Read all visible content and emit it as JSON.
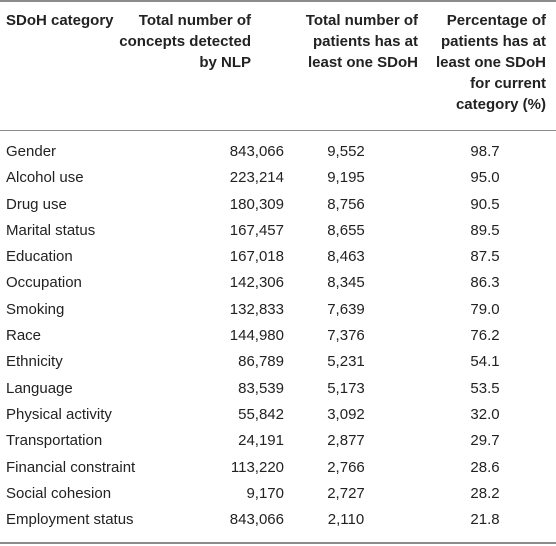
{
  "table": {
    "headers": [
      "SDoH category",
      "Total number of\nconcepts detected\nby NLP",
      "Total number of\npatients has at\nleast one SDoH",
      "Percentage of\npatients has at\nleast one SDoH\nfor current\ncategory (%)"
    ],
    "rows": [
      [
        "Gender",
        "843,066",
        "9,552",
        "98.7"
      ],
      [
        "Alcohol use",
        "223,214",
        "9,195",
        "95.0"
      ],
      [
        "Drug use",
        "180,309",
        "8,756",
        "90.5"
      ],
      [
        "Marital status",
        "167,457",
        "8,655",
        "89.5"
      ],
      [
        "Education",
        "167,018",
        "8,463",
        "87.5"
      ],
      [
        "Occupation",
        "142,306",
        "8,345",
        "86.3"
      ],
      [
        "Smoking",
        "132,833",
        "7,639",
        "79.0"
      ],
      [
        "Race",
        "144,980",
        "7,376",
        "76.2"
      ],
      [
        "Ethnicity",
        "86,789",
        "5,231",
        "54.1"
      ],
      [
        "Language",
        "83,539",
        "5,173",
        "53.5"
      ],
      [
        "Physical activity",
        "55,842",
        "3,092",
        "32.0"
      ],
      [
        "Transportation",
        "24,191",
        "2,877",
        "29.7"
      ],
      [
        "Financial constraint",
        "113,220",
        "2,766",
        "28.6"
      ],
      [
        "Social cohesion",
        "9,170",
        "2,727",
        "28.2"
      ],
      [
        "Employment status",
        "843,066",
        "2,110",
        "21.8"
      ]
    ]
  }
}
